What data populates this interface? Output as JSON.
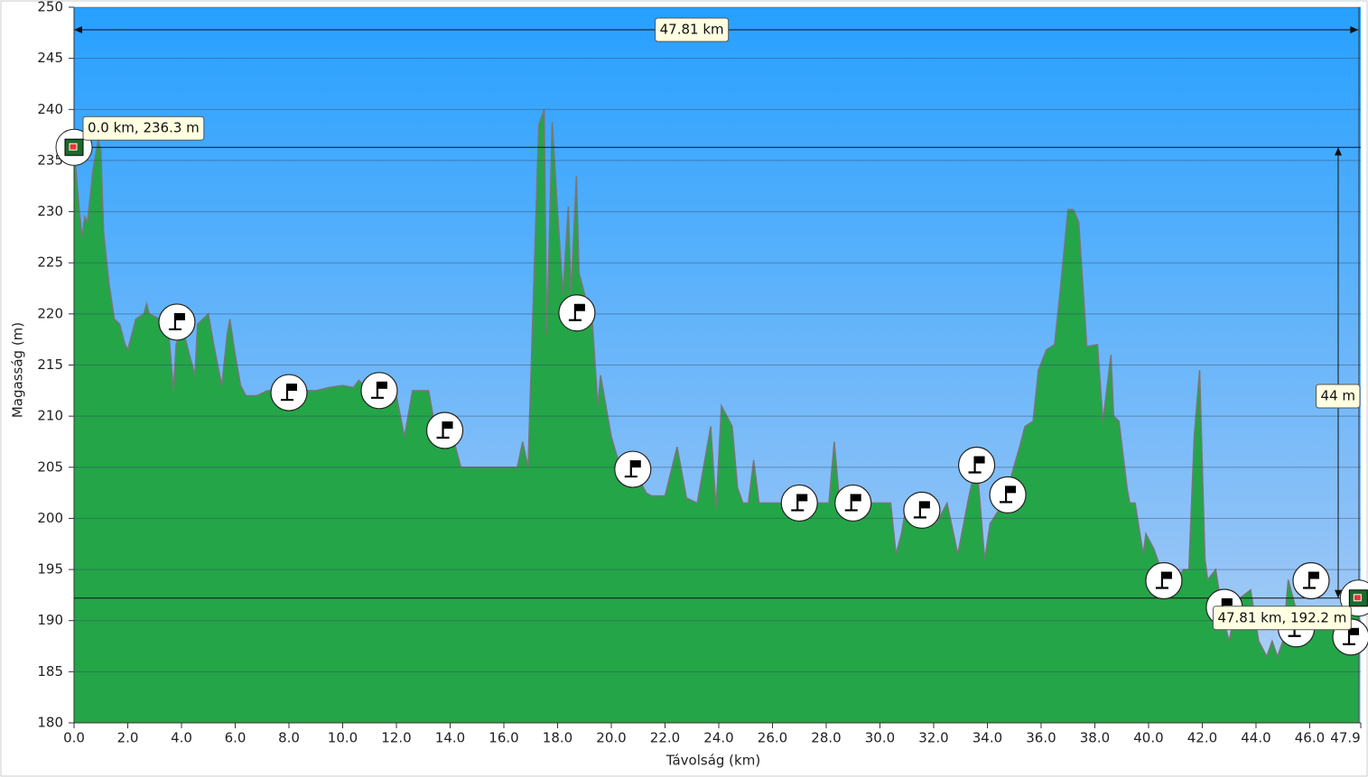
{
  "chart_data": {
    "type": "area",
    "xlabel": "Távolság   (km)",
    "ylabel": "Magasság (m)",
    "xlim": [
      0,
      47.9
    ],
    "ylim": [
      180,
      250
    ],
    "yticks": [
      180,
      185,
      190,
      195,
      200,
      205,
      210,
      215,
      220,
      225,
      230,
      235,
      240,
      245,
      250
    ],
    "xticks": [
      {
        "value": 0,
        "label": "0.0"
      },
      {
        "value": 2,
        "label": "2.0"
      },
      {
        "value": 4,
        "label": "4.0"
      },
      {
        "value": 6,
        "label": "6.0"
      },
      {
        "value": 8,
        "label": "8.0"
      },
      {
        "value": 10,
        "label": "10.0"
      },
      {
        "value": 12,
        "label": "12.0"
      },
      {
        "value": 14,
        "label": "14.0"
      },
      {
        "value": 16,
        "label": "16.0"
      },
      {
        "value": 18,
        "label": "18.0"
      },
      {
        "value": 20,
        "label": "20.0"
      },
      {
        "value": 22,
        "label": "22.0"
      },
      {
        "value": 24,
        "label": "24.0"
      },
      {
        "value": 26,
        "label": "26.0"
      },
      {
        "value": 28,
        "label": "28.0"
      },
      {
        "value": 30,
        "label": "30.0"
      },
      {
        "value": 32,
        "label": "32.0"
      },
      {
        "value": 34,
        "label": "34.0"
      },
      {
        "value": 36,
        "label": "36.0"
      },
      {
        "value": 38,
        "label": "38.0"
      },
      {
        "value": 40,
        "label": "40.0"
      },
      {
        "value": 42,
        "label": "42.0"
      },
      {
        "value": 44,
        "label": "44.0"
      },
      {
        "value": 46,
        "label": "46.0"
      },
      {
        "value": 47.9,
        "label": "47.9"
      }
    ],
    "grid": true,
    "color": "#1f9e45",
    "x": [
      0,
      0.2,
      0.3,
      0.4,
      0.5,
      0.7,
      0.9,
      1.0,
      1.1,
      1.3,
      1.5,
      1.7,
      1.9,
      2.0,
      2.3,
      2.6,
      2.7,
      2.8,
      3.2,
      3.5,
      3.7,
      3.8,
      4.0,
      4.3,
      4.5,
      4.6,
      5.0,
      5.2,
      5.5,
      5.7,
      5.8,
      6.0,
      6.2,
      6.4,
      6.8,
      7.2,
      8.0,
      9.0,
      9.5,
      10.0,
      10.4,
      10.6,
      11.0,
      11.5,
      12.0,
      12.3,
      12.6,
      13.2,
      13.5,
      14.0,
      14.4,
      15.0,
      16.0,
      16.5,
      16.7,
      16.9,
      17.3,
      17.5,
      17.6,
      17.8,
      18.0,
      18.2,
      18.4,
      18.5,
      18.7,
      18.8,
      19.0,
      19.3,
      19.5,
      19.6,
      19.8,
      20.0,
      20.3,
      20.8,
      21.3,
      21.5,
      22.0,
      22.45,
      22.8,
      23.2,
      23.5,
      23.7,
      23.9,
      24.1,
      24.5,
      24.7,
      24.9,
      25.1,
      25.3,
      25.5,
      28.1,
      28.3,
      28.5,
      30.4,
      30.6,
      30.8,
      31.0,
      32.1,
      32.5,
      32.9,
      33.3,
      33.6,
      33.9,
      34.1,
      34.6,
      35.2,
      35.4,
      35.7,
      35.9,
      36.2,
      36.5,
      36.7,
      37.0,
      37.2,
      37.4,
      37.6,
      37.7,
      38.1,
      38.3,
      38.6,
      38.7,
      38.9,
      39.2,
      39.3,
      39.5,
      39.8,
      39.9,
      40.2,
      40.6,
      40.9,
      41.3,
      41.5,
      41.7,
      41.9,
      42.1,
      42.2,
      42.5,
      42.8,
      43.0,
      43.3,
      43.8,
      44.1,
      44.4,
      44.6,
      44.8,
      45.0,
      45.2,
      45.6,
      46.3,
      47.0,
      47.5,
      47.81
    ],
    "values": [
      236.3,
      230,
      227.5,
      229.5,
      229,
      234,
      237,
      236,
      228,
      223,
      219.5,
      219,
      217,
      216.5,
      219.5,
      220,
      221,
      220,
      219.5,
      219,
      212.5,
      217,
      219,
      216,
      214,
      219,
      220,
      217,
      213,
      218,
      219.5,
      216,
      213,
      212,
      212,
      212.5,
      212.5,
      212.5,
      212.8,
      213,
      212.8,
      213.5,
      212.5,
      212.5,
      212,
      208,
      212.5,
      212.5,
      208,
      209,
      205,
      205,
      205,
      205,
      207.5,
      205,
      238.5,
      240,
      218,
      238.8,
      230,
      222,
      230.5,
      222,
      233.5,
      224,
      222,
      219,
      211,
      214,
      211,
      208,
      205.3,
      205,
      202.5,
      202.2,
      202.2,
      207,
      202,
      201.5,
      206,
      209,
      201,
      211,
      209,
      203,
      201.5,
      201.5,
      205.7,
      201.5,
      201.5,
      207.5,
      201.5,
      201.5,
      196.5,
      198.5,
      201.5,
      199.5,
      201.5,
      196.5,
      202,
      205.5,
      196,
      199.5,
      201.5,
      207,
      209,
      209.5,
      214.5,
      216.5,
      217,
      222,
      230.2,
      230.2,
      229,
      221,
      216.8,
      217,
      209.5,
      216,
      210,
      209.5,
      203,
      201.5,
      201.5,
      196.5,
      198.5,
      197,
      194,
      193.5,
      195,
      195,
      208,
      214.5,
      196,
      194,
      195,
      190,
      188,
      192,
      193,
      188,
      186.5,
      188,
      186.5,
      188,
      194,
      190,
      191,
      190.5,
      192,
      192.2
    ],
    "markers": {
      "x": [
        3.83,
        8.0,
        11.36,
        13.8,
        18.72,
        20.8,
        27.0,
        29.0,
        31.56,
        33.6,
        34.76,
        40.57,
        42.82,
        45.5,
        46.05,
        47.53
      ],
      "y": [
        219.2,
        212.3,
        212.5,
        208.6,
        220.1,
        204.8,
        201.5,
        201.5,
        200.8,
        205.2,
        202.3,
        193.9,
        191.3,
        189.2,
        193.9,
        188.4
      ]
    },
    "annotations": {
      "distance": "47.81 km",
      "start": "0.0 km, 236.3 m",
      "end": "47.81 km, 192.2 m",
      "climb": "44 m"
    }
  }
}
